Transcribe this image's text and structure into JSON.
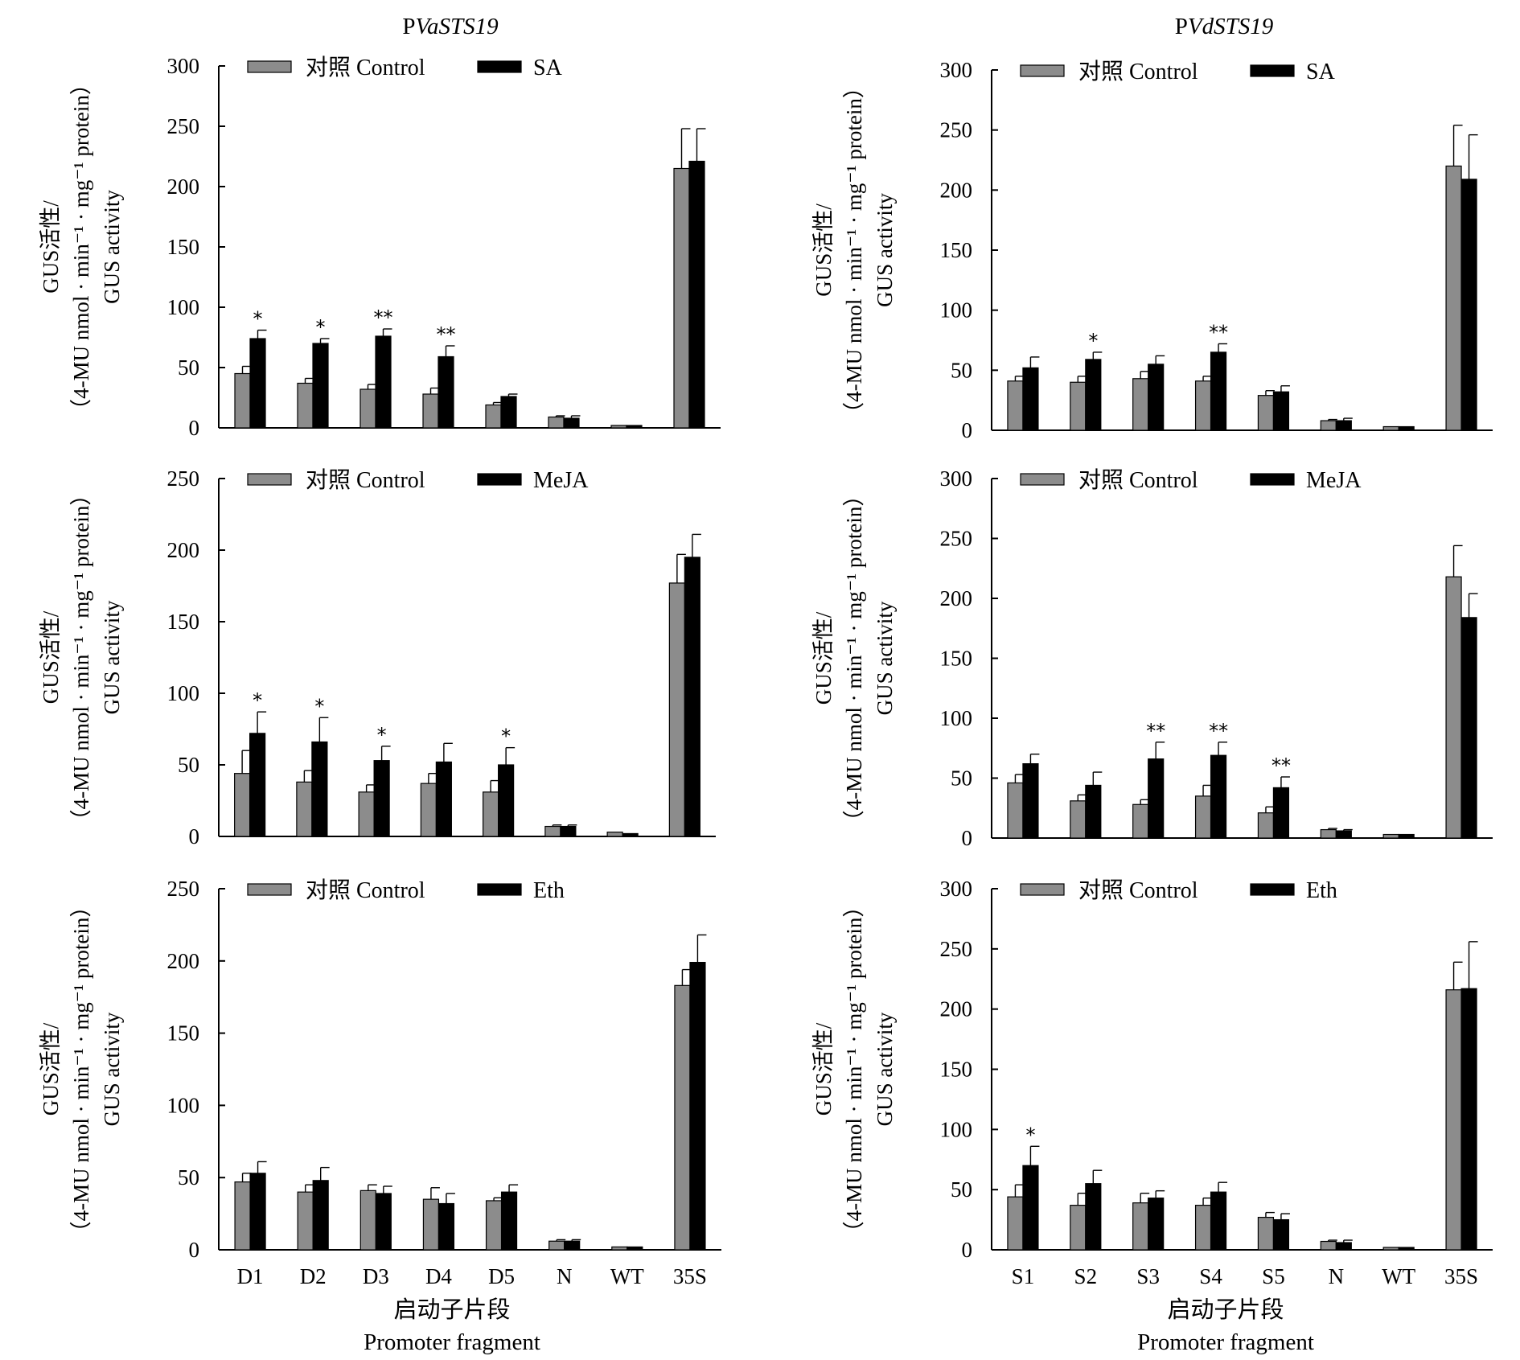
{
  "columns": [
    {
      "title_prefix": "P",
      "title_italic": "VaSTS19"
    },
    {
      "title_prefix": "P",
      "title_italic": "VdSTS19"
    }
  ],
  "y_label": {
    "line1": "GUS活性/",
    "line2": "（4-MU nmol · min⁻¹ · mg⁻¹ protein）",
    "line3": "GUS activity"
  },
  "x_title": {
    "line1": "启动子片段",
    "line2": "Promoter fragment"
  },
  "legend_control": "对照 Control",
  "colors": {
    "control": "#8c8c8c",
    "treatment": "#000000"
  },
  "chart_data": [
    {
      "type": "bar",
      "panel": "PVaSTS19 SA",
      "categories": [
        "D1",
        "D2",
        "D3",
        "D4",
        "D5",
        "N",
        "WT",
        "35S"
      ],
      "ylim": [
        0,
        300
      ],
      "yticks": [
        0,
        50,
        100,
        150,
        200,
        250,
        300
      ],
      "series": [
        {
          "name": "对照 Control",
          "values": [
            45,
            37,
            32,
            28,
            19,
            9,
            2,
            215
          ],
          "errors": [
            6,
            4,
            4,
            5,
            2,
            1,
            0,
            33
          ]
        },
        {
          "name": "SA",
          "values": [
            74,
            70,
            76,
            59,
            26,
            8,
            2,
            221
          ],
          "errors": [
            7,
            4,
            6,
            9,
            2,
            2,
            0,
            27
          ]
        }
      ],
      "significance": [
        "*",
        "*",
        "**",
        "**",
        "",
        "",
        "",
        ""
      ],
      "show_x_labels": false
    },
    {
      "type": "bar",
      "panel": "PVdSTS19 SA",
      "categories": [
        "S1",
        "S2",
        "S3",
        "S4",
        "S5",
        "N",
        "WT",
        "35S"
      ],
      "ylim": [
        0,
        300
      ],
      "yticks": [
        0,
        50,
        100,
        150,
        200,
        250,
        300
      ],
      "series": [
        {
          "name": "对照 Control",
          "values": [
            41,
            40,
            43,
            41,
            29,
            8,
            3,
            220
          ],
          "errors": [
            4,
            5,
            6,
            4,
            4,
            1,
            0,
            34
          ]
        },
        {
          "name": "SA",
          "values": [
            52,
            59,
            55,
            65,
            32,
            8,
            3,
            209
          ],
          "errors": [
            9,
            6,
            7,
            7,
            5,
            2,
            0,
            37
          ]
        }
      ],
      "significance": [
        "",
        "*",
        "",
        "**",
        "",
        "",
        "",
        ""
      ],
      "show_x_labels": false
    },
    {
      "type": "bar",
      "panel": "PVaSTS19 MeJA",
      "categories": [
        "D1",
        "D2",
        "D3",
        "D4",
        "D5",
        "N",
        "WT",
        "35S"
      ],
      "ylim": [
        0,
        250
      ],
      "yticks": [
        0,
        50,
        100,
        150,
        200,
        250
      ],
      "series": [
        {
          "name": "对照 Control",
          "values": [
            44,
            38,
            31,
            37,
            31,
            7,
            3,
            177
          ],
          "errors": [
            16,
            8,
            5,
            7,
            8,
            1,
            0,
            20
          ]
        },
        {
          "name": "MeJA",
          "values": [
            72,
            66,
            53,
            52,
            50,
            7,
            2,
            195
          ],
          "errors": [
            15,
            17,
            10,
            13,
            12,
            1,
            0,
            16
          ]
        }
      ],
      "significance": [
        "*",
        "*",
        "*",
        "",
        "*",
        "",
        "",
        ""
      ],
      "show_x_labels": false
    },
    {
      "type": "bar",
      "panel": "PVdSTS19 MeJA",
      "categories": [
        "S1",
        "S2",
        "S3",
        "S4",
        "S5",
        "N",
        "WT",
        "35S"
      ],
      "ylim": [
        0,
        300
      ],
      "yticks": [
        0,
        50,
        100,
        150,
        200,
        250,
        300
      ],
      "series": [
        {
          "name": "对照 Control",
          "values": [
            46,
            31,
            28,
            35,
            21,
            7,
            3,
            218
          ],
          "errors": [
            7,
            5,
            4,
            9,
            5,
            1,
            0,
            26
          ]
        },
        {
          "name": "MeJA",
          "values": [
            62,
            44,
            66,
            69,
            42,
            6,
            3,
            184
          ],
          "errors": [
            8,
            11,
            14,
            11,
            9,
            1,
            0,
            20
          ]
        }
      ],
      "significance": [
        "",
        "",
        "**",
        "**",
        "**",
        "",
        "",
        ""
      ],
      "show_x_labels": false
    },
    {
      "type": "bar",
      "panel": "PVaSTS19 Eth",
      "categories": [
        "D1",
        "D2",
        "D3",
        "D4",
        "D5",
        "N",
        "WT",
        "35S"
      ],
      "ylim": [
        0,
        250
      ],
      "yticks": [
        0,
        50,
        100,
        150,
        200,
        250
      ],
      "series": [
        {
          "name": "对照 Control",
          "values": [
            47,
            40,
            41,
            35,
            34,
            6,
            2,
            183
          ],
          "errors": [
            6,
            5,
            4,
            8,
            2,
            1,
            0,
            11
          ]
        },
        {
          "name": "Eth",
          "values": [
            53,
            48,
            39,
            32,
            40,
            6,
            2,
            199
          ],
          "errors": [
            8,
            9,
            5,
            7,
            5,
            1,
            0,
            19
          ]
        }
      ],
      "significance": [
        "",
        "",
        "",
        "",
        "",
        "",
        "",
        ""
      ],
      "show_x_labels": true
    },
    {
      "type": "bar",
      "panel": "PVdSTS19 Eth",
      "categories": [
        "S1",
        "S2",
        "S3",
        "S4",
        "S5",
        "N",
        "WT",
        "35S"
      ],
      "ylim": [
        0,
        300
      ],
      "yticks": [
        0,
        50,
        100,
        150,
        200,
        250,
        300
      ],
      "series": [
        {
          "name": "对照 Control",
          "values": [
            44,
            37,
            39,
            37,
            27,
            7,
            2,
            216
          ],
          "errors": [
            10,
            10,
            8,
            6,
            4,
            1,
            0,
            23
          ]
        },
        {
          "name": "Eth",
          "values": [
            70,
            55,
            43,
            48,
            25,
            6,
            2,
            217
          ],
          "errors": [
            16,
            11,
            6,
            8,
            5,
            2,
            0,
            39
          ]
        }
      ],
      "significance": [
        "*",
        "",
        "",
        "",
        "",
        "",
        "",
        ""
      ],
      "show_x_labels": true
    }
  ]
}
